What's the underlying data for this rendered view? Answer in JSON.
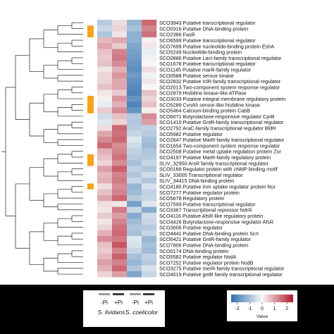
{
  "chart_data": {
    "type": "heatmap",
    "legend_title": "Value",
    "legend_ticks": [
      -2,
      -1,
      0,
      1,
      2
    ],
    "value_range": [
      -2.5,
      2.5
    ],
    "column_groups": [
      {
        "name": "S. lividans",
        "conditions": [
          "-Pi",
          "+Pi"
        ]
      },
      {
        "name": "S. coelicolor",
        "conditions": [
          "-Pi",
          "+Pi"
        ]
      }
    ],
    "row_labels": [
      "SCO3943 Putative transcriptional regulator",
      "SCO0316 Putative DNA-binding protein",
      "SCO2386 FasR",
      "SCO6599 Putative transcriptional regulator",
      "SCO7699 Putative nucleotide-binding protein EshA",
      "SCO5249 Nucleotide-binding protein",
      "SCO0886 Putative LacI-family transcriptional regulator",
      "SCO1678 Putative transcriptional regulator",
      "SCO1145 Putative marR-family regulator",
      "SCO0588 Putative sensor kinase",
      "SCO2832 Putative IclR-family transcriptional regulator",
      "SCO2013 Two-component system response regulator",
      "SCO2879 Histidine kinase-like ATPase",
      "SCO3033 Putative integral membrane regulatory protein",
      "SCO5289 CvnA5 sensor-like histidine kinase",
      "SCO5464 Calcium-binding protein CabB",
      "SCO6071 Butyrolactone-responsive regulator CprB",
      "SCO1410 Putative GntR-family transcriptional regulator",
      "SCO2792 AraC-family transcriptional regulator BldH",
      "SCO5982 Putative regulator",
      "SCO2647 Putative MarR-family transcriptional regulator",
      "SCO1654 Two-component system response regulator",
      "SCO2508 Putative metal uptake regulation protein Zur",
      "SCO4197 Putative MarR-family regulatory protein",
      "SLIV_32950 ArsR family transcriptional regulator",
      "SCO0168 Regulator protein with cNMP binding motif",
      "SLIV_33005 Transcriptional regulator",
      "SLIV_34415 DNA-binding protein",
      "SCO4180 Putative iron uptake regulator protein Nur",
      "SCO7277 Putative regulator protein",
      "SCO5678 Regulatory protein",
      "SCO7599 Putative transcriptional regulator",
      "SCO3367 Transcriptional repressor NdrR",
      "SCO4116 Putative AfsR-like regulatory protein",
      "SCO4426 Butyrolactone-responsive regulator AfsR",
      "SCO3606 Putative regulator",
      "SCO4441 Putative DNA-binding protein ScrI",
      "SCO0421 Putative GntR-family regulator",
      "SCO7806 Putative DNA-binding protein",
      "SCO0174 DNA-binding protein",
      "SCO5582 Putative regulator NsdA",
      "SCO7252 Putative regulator protein NsdB",
      "SCO3275 Putative merR-family transcriptional regulator",
      "SCO4019 Putative gntR family transcriptional regulator"
    ],
    "values": [
      [
        -0.8,
        0.3,
        -1.2,
        1.6
      ],
      [
        -0.6,
        0.4,
        -1.0,
        1.3
      ],
      [
        -0.9,
        0.2,
        -1.3,
        1.5
      ],
      [
        0.7,
        0.9,
        -1.3,
        0.1
      ],
      [
        0.9,
        0.5,
        -1.5,
        0.2
      ],
      [
        0.6,
        1.3,
        -1.6,
        -0.2
      ],
      [
        0.5,
        1.4,
        -1.7,
        -0.1
      ],
      [
        0.6,
        1.2,
        -1.8,
        0.0
      ],
      [
        0.2,
        0.8,
        -1.9,
        0.3
      ],
      [
        0.4,
        1.1,
        -1.7,
        -0.1
      ],
      [
        0.4,
        0.9,
        -1.9,
        0.2
      ],
      [
        0.6,
        0.9,
        -2.0,
        0.0
      ],
      [
        0.2,
        0.5,
        -2.1,
        0.6
      ],
      [
        0.1,
        1.1,
        -1.8,
        0.4
      ],
      [
        -0.2,
        0.8,
        -2.1,
        0.6
      ],
      [
        0.5,
        1.2,
        -1.8,
        0.1
      ],
      [
        -0.5,
        0.6,
        -0.8,
        1.2
      ],
      [
        -0.3,
        0.4,
        -0.9,
        1.0
      ],
      [
        0.3,
        1.6,
        -0.8,
        -0.7
      ],
      [
        0.9,
        1.5,
        -0.6,
        -0.8
      ],
      [
        1.2,
        1.6,
        -0.3,
        -1.0
      ],
      [
        1.6,
        1.2,
        -0.5,
        -1.1
      ],
      [
        0.8,
        1.3,
        -0.7,
        -0.9
      ],
      [
        0.6,
        1.5,
        -0.8,
        -0.8
      ],
      [
        0.4,
        1.2,
        -1.0,
        -0.6
      ],
      [
        1.0,
        1.7,
        -0.7,
        -0.9
      ],
      [
        0.7,
        1.3,
        -0.9,
        -0.5
      ],
      [
        0.8,
        1.4,
        -0.6,
        -0.9
      ],
      [
        0.3,
        1.2,
        -1.2,
        -0.4
      ],
      [
        0.6,
        1.3,
        -1.1,
        -0.7
      ],
      [
        0.9,
        1.6,
        -0.8,
        -0.6
      ],
      [
        0.3,
        0.2,
        -1.6,
        -0.3
      ],
      [
        0.2,
        1.4,
        -0.6,
        -1.4
      ],
      [
        0.5,
        1.0,
        -1.4,
        -0.5
      ],
      [
        0.2,
        1.3,
        -1.1,
        -0.6
      ],
      [
        0.4,
        1.5,
        -0.9,
        -0.8
      ],
      [
        0.8,
        1.6,
        -1.0,
        -0.6
      ],
      [
        1.2,
        1.4,
        -0.3,
        -1.2
      ],
      [
        0.6,
        1.8,
        -0.4,
        -1.0
      ],
      [
        0.5,
        1.3,
        -0.6,
        -1.1
      ],
      [
        0.7,
        1.7,
        -1.0,
        -0.7
      ],
      [
        1.0,
        1.3,
        -1.2,
        -0.8
      ],
      [
        0.8,
        1.6,
        -0.9,
        -0.4
      ],
      [
        0.4,
        1.0,
        -1.5,
        -0.6
      ]
    ],
    "highlighted_rows": [
      1,
      2,
      13,
      14,
      15,
      23,
      24,
      28
    ],
    "colors": {
      "low": "#2f6fad",
      "mid": "#f7f7f7",
      "high": "#b2182b",
      "highlight": "#f7a21b"
    }
  }
}
